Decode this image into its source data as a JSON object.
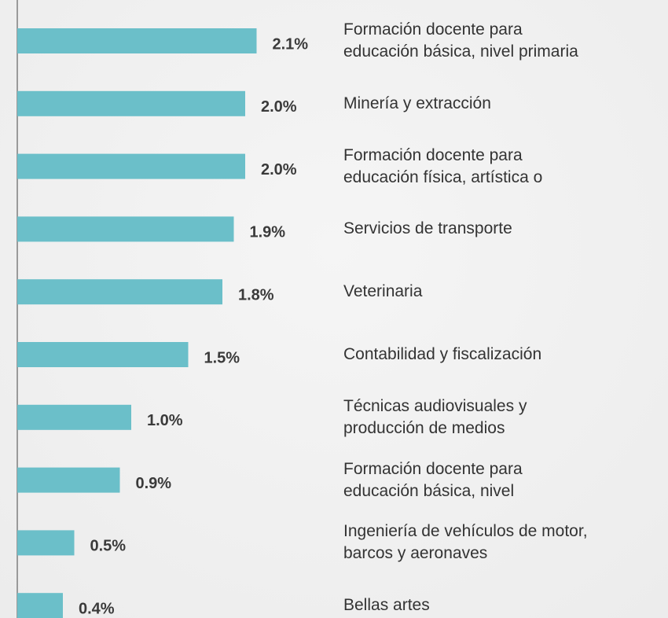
{
  "chart_data": {
    "type": "bar",
    "orientation": "horizontal",
    "color": "#6bbfc9",
    "categories": [
      "Formación docente para\neducación básica, nivel primaria",
      "Minería y extracción",
      "Formación docente para\neducación física, artística o",
      "Servicios de transporte",
      "Veterinaria",
      "Contabilidad y fiscalización",
      "Técnicas audiovisuales y\nproducción de medios",
      "Formación docente para\neducación básica, nivel",
      "Ingeniería de vehículos de motor,\nbarcos y aeronaves",
      "Bellas artes"
    ],
    "values": [
      2.1,
      2.0,
      2.0,
      1.9,
      1.8,
      1.5,
      1.0,
      0.9,
      0.5,
      0.4
    ],
    "value_labels": [
      "2.1%",
      "2.0%",
      "2.0%",
      "1.9%",
      "1.8%",
      "1.5%",
      "1.0%",
      "0.9%",
      "0.5%",
      "0.4%"
    ]
  }
}
